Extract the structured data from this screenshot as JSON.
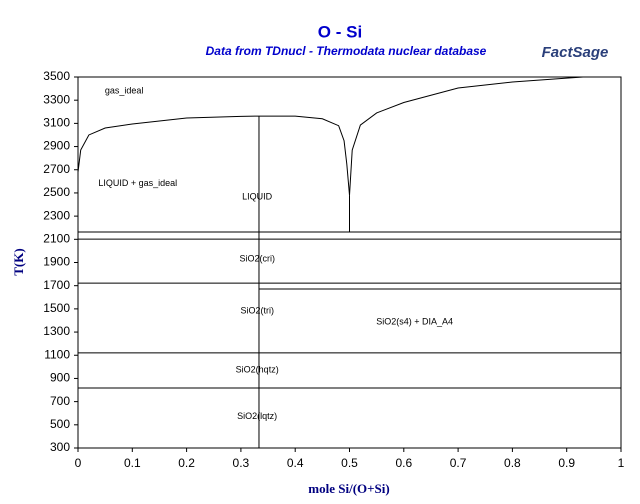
{
  "chart_data": {
    "type": "line",
    "title": "O - Si",
    "subtitle": "Data from TDnucl - Thermodata nuclear database",
    "logo": "FactSage",
    "x_label": "mole Si/(O+Si)",
    "y_label": "T(K)",
    "xlim": [
      0,
      1
    ],
    "ylim": [
      300,
      3500
    ],
    "xticks": [
      0,
      0.1,
      0.2,
      0.3,
      0.4,
      0.5,
      0.6,
      0.7,
      0.8,
      0.9,
      1
    ],
    "yticks": [
      300,
      500,
      700,
      900,
      1100,
      1300,
      1500,
      1700,
      1900,
      2100,
      2300,
      2500,
      2700,
      2900,
      3100,
      3300,
      3500
    ],
    "line_color": "#000000",
    "title_color": "#0000cc",
    "label_color": "#000080",
    "series": [
      {
        "x": [
          0,
          0.005,
          0.02,
          0.05,
          0.1,
          0.2,
          0.3,
          0.3333,
          0.4,
          0.45,
          0.48,
          0.49,
          0.495,
          0.5
        ],
        "values": [
          2680,
          2870,
          3000,
          3060,
          3095,
          3146,
          3160,
          3163,
          3163,
          3140,
          3080,
          2950,
          2750,
          2480
        ]
      },
      {
        "x": [
          0.5,
          0.505,
          0.52,
          0.55,
          0.6,
          0.7,
          0.8,
          0.9,
          0.93,
          1
        ],
        "values": [
          2480,
          2870,
          3085,
          3190,
          3280,
          3405,
          3457,
          3490,
          3500,
          3500
        ]
      },
      {
        "x": [
          0.3333,
          0.3333
        ],
        "values": [
          300,
          3163
        ]
      },
      {
        "x": [
          0.5,
          0.5
        ],
        "values": [
          2163,
          2480
        ]
      },
      {
        "x": [
          0,
          1
        ],
        "values": [
          2163,
          2163
        ]
      },
      {
        "x": [
          0,
          1
        ],
        "values": [
          2102,
          2102
        ]
      },
      {
        "x": [
          0,
          1
        ],
        "values": [
          1722,
          1722
        ]
      },
      {
        "x": [
          0.3333,
          1
        ],
        "values": [
          1671,
          1671
        ]
      },
      {
        "x": [
          0,
          1
        ],
        "values": [
          1120,
          1120
        ]
      },
      {
        "x": [
          0,
          1
        ],
        "values": [
          817,
          817
        ]
      }
    ],
    "annotations": [
      {
        "text": "gas_ideal",
        "x": 0.085,
        "y": 3380
      },
      {
        "text": "LIQUID + gas_ideal",
        "x": 0.11,
        "y": 2580
      },
      {
        "text": "LIQUID",
        "x": 0.33,
        "y": 2465
      },
      {
        "text": "SiO2(cri)",
        "x": 0.33,
        "y": 1930
      },
      {
        "text": "SiO2(tri)",
        "x": 0.33,
        "y": 1480
      },
      {
        "text": "SiO2(s4) + DIA_A4",
        "x": 0.62,
        "y": 1385
      },
      {
        "text": "SiO2(hqtz)",
        "x": 0.33,
        "y": 970
      },
      {
        "text": "SiO2(lqtz)",
        "x": 0.33,
        "y": 570
      }
    ]
  }
}
